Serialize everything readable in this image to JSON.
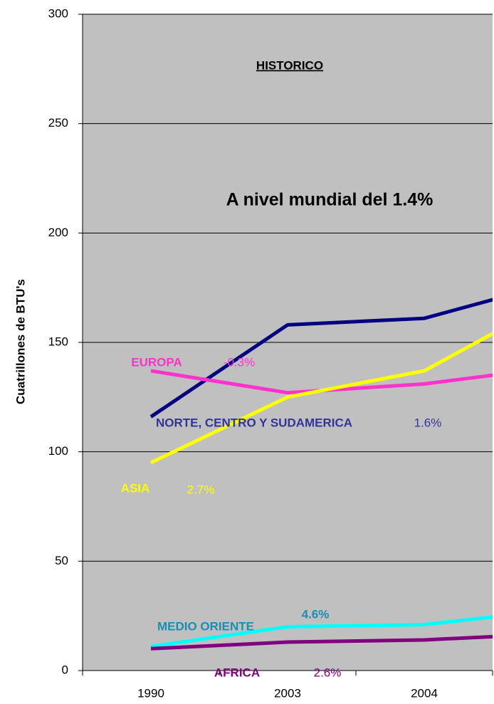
{
  "chart_data": {
    "type": "line",
    "title": "HISTORICO",
    "subtitle": "A nivel mundial del 1.4%",
    "y_label": "Cuatrillones de BTU's",
    "categories": [
      "1990",
      "2003",
      "2004",
      null
    ],
    "series": [
      {
        "name": "NORTE, CENTRO Y SUDAMERICA",
        "growth": "1.6%",
        "color": "#000080",
        "label_color": "#333399",
        "values": [
          116,
          158,
          161,
          178
        ]
      },
      {
        "name": "EUROPA",
        "growth": "-0.3%",
        "color": "#ff33cc",
        "label_color": "#ff33cc",
        "values": [
          137,
          127,
          131,
          139
        ]
      },
      {
        "name": "ASIA",
        "growth": "2.7%",
        "color": "#ffff00",
        "label_color": "#ffff00",
        "values": [
          95,
          125,
          137,
          171
        ]
      },
      {
        "name": "MEDIO ORIENTE",
        "growth": "4.6%",
        "color": "#00ffff",
        "label_color": "#1a8fb0",
        "values": [
          11,
          20,
          21,
          28
        ]
      },
      {
        "name": "AFRICA",
        "growth": "2.6%",
        "color": "#800080",
        "label_color": "#800080",
        "values": [
          10,
          13,
          14,
          17
        ]
      }
    ],
    "ylim": [
      0,
      300
    ],
    "yticks": [
      0,
      50,
      100,
      150,
      200,
      250,
      300
    ],
    "grid": true
  }
}
